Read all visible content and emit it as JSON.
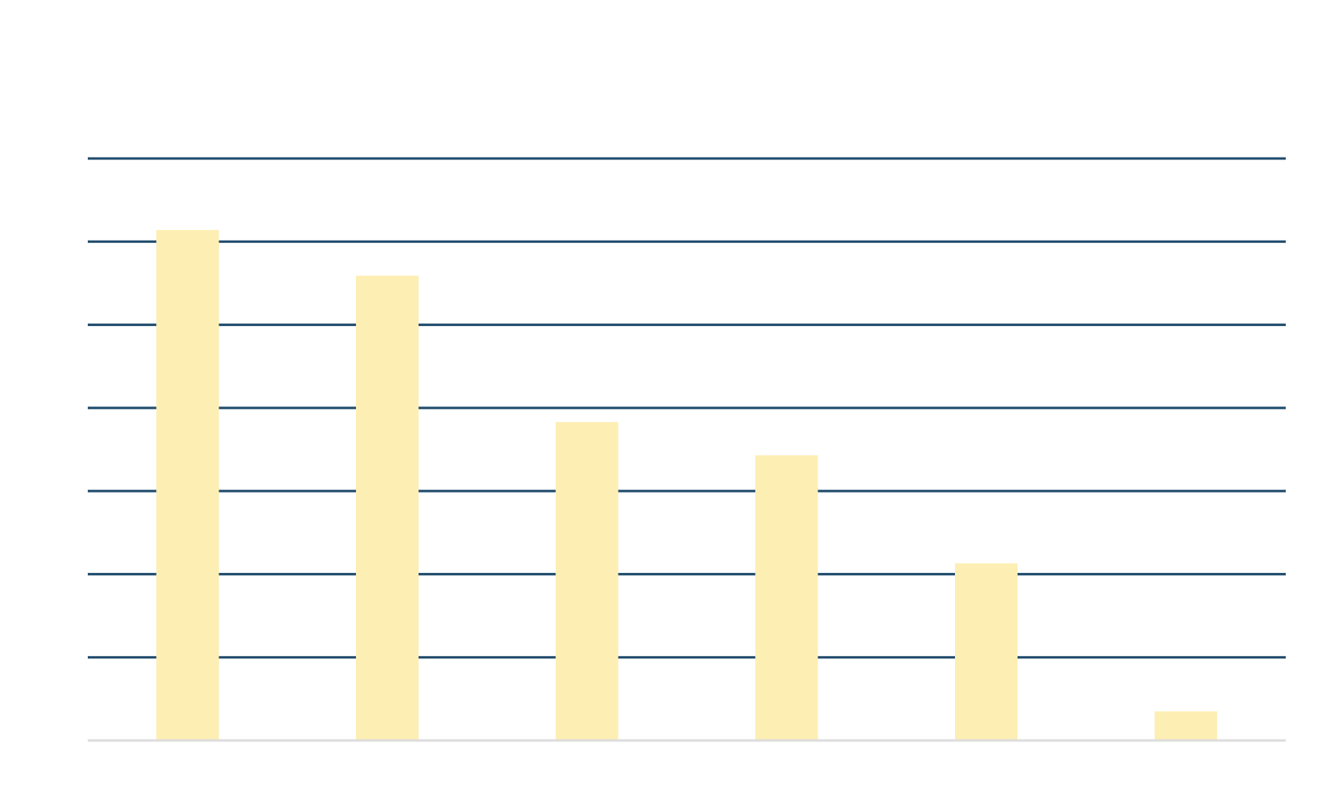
{
  "chart_data": {
    "type": "bar",
    "title": "",
    "xlabel": "",
    "ylabel": "",
    "categories": [
      "",
      "",
      "",
      "",
      "",
      ""
    ],
    "values": [
      6.14,
      5.59,
      3.83,
      3.43,
      2.13,
      0.35
    ],
    "ylim": [
      0,
      7
    ],
    "gridlines": [
      1,
      2,
      3,
      4,
      5,
      6,
      7
    ],
    "grid": true,
    "legend": "none",
    "colors": {
      "bar": "#fdeeb3",
      "grid": "#1f4a6b",
      "baseline": "#dddddd",
      "background": "#ffffff"
    }
  }
}
